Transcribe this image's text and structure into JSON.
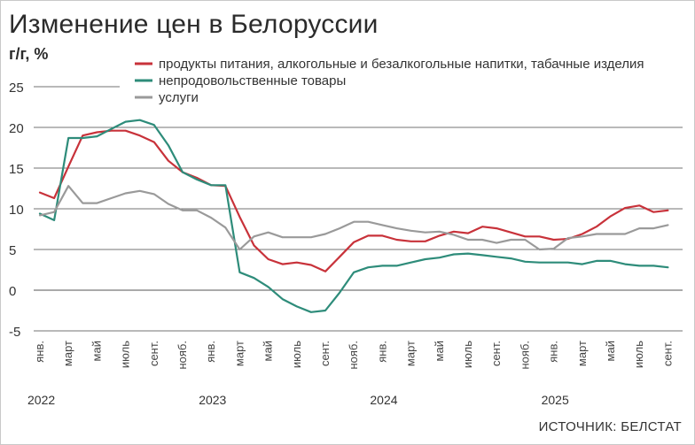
{
  "chart_data": {
    "type": "line",
    "title": "Изменение цен в Белоруссии",
    "ylabel": "г/г, %",
    "source": "ИСТОЧНИК: БЕЛСТАТ",
    "ylim": [
      -5,
      25
    ],
    "yticks": [
      25,
      20,
      15,
      10,
      5,
      0,
      -5
    ],
    "grid": true,
    "legend_position": "top-right",
    "month_tick_labels": [
      "янв.",
      "март",
      "май",
      "июль",
      "сент.",
      "нояб.",
      "янв.",
      "март",
      "май",
      "июль",
      "сент.",
      "нояб.",
      "янв.",
      "март",
      "май",
      "июль",
      "сент.",
      "нояб.",
      "янв.",
      "март",
      "май",
      "июль",
      "сент."
    ],
    "year_labels": [
      {
        "label": "2022",
        "month_index": 0
      },
      {
        "label": "2023",
        "month_index": 12
      },
      {
        "label": "2024",
        "month_index": 24
      },
      {
        "label": "2025",
        "month_index": 36
      }
    ],
    "x": [
      "2022-01",
      "2022-02",
      "2022-03",
      "2022-04",
      "2022-05",
      "2022-06",
      "2022-07",
      "2022-08",
      "2022-09",
      "2022-10",
      "2022-11",
      "2022-12",
      "2023-01",
      "2023-02",
      "2023-03",
      "2023-04",
      "2023-05",
      "2023-06",
      "2023-07",
      "2023-08",
      "2023-09",
      "2023-10",
      "2023-11",
      "2023-12",
      "2024-01",
      "2024-02",
      "2024-03",
      "2024-04",
      "2024-05",
      "2024-06",
      "2024-07",
      "2024-08",
      "2024-09",
      "2024-10",
      "2024-11",
      "2024-12",
      "2025-01",
      "2025-02",
      "2025-03",
      "2025-04",
      "2025-05",
      "2025-06",
      "2025-07",
      "2025-08",
      "2025-09"
    ],
    "series": [
      {
        "name": "продукты питания, алкогольные и безалкогольные напитки, табачные изделия",
        "color": "#c8323a",
        "values": [
          12.0,
          11.3,
          15.2,
          19.0,
          19.4,
          19.6,
          19.6,
          19.0,
          18.2,
          15.9,
          14.5,
          13.8,
          12.9,
          12.8,
          9.0,
          5.5,
          3.8,
          3.2,
          3.4,
          3.1,
          2.3,
          4.1,
          5.9,
          6.7,
          6.7,
          6.2,
          6.0,
          6.0,
          6.7,
          7.2,
          7.0,
          7.8,
          7.6,
          7.1,
          6.6,
          6.6,
          6.2,
          6.3,
          6.9,
          7.8,
          9.1,
          10.1,
          10.4,
          9.6,
          9.8
        ]
      },
      {
        "name": "непродовольственные товары",
        "color": "#2e8c7a",
        "values": [
          9.4,
          8.6,
          18.7,
          18.7,
          18.9,
          19.8,
          20.7,
          20.9,
          20.3,
          17.8,
          14.5,
          13.6,
          12.9,
          12.9,
          2.2,
          1.5,
          0.4,
          -1.1,
          -2.0,
          -2.7,
          -2.5,
          -0.3,
          2.2,
          2.8,
          3.0,
          3.0,
          3.4,
          3.8,
          4.0,
          4.4,
          4.5,
          4.3,
          4.1,
          3.9,
          3.5,
          3.4,
          3.4,
          3.4,
          3.2,
          3.6,
          3.6,
          3.2,
          3.0,
          3.0,
          2.8
        ]
      },
      {
        "name": "услуги",
        "color": "#9a9a9a",
        "values": [
          9.2,
          9.6,
          12.8,
          10.7,
          10.7,
          11.3,
          11.9,
          12.2,
          11.8,
          10.6,
          9.8,
          9.8,
          8.9,
          7.7,
          5.0,
          6.6,
          7.1,
          6.5,
          6.5,
          6.5,
          6.9,
          7.6,
          8.4,
          8.4,
          8.0,
          7.6,
          7.3,
          7.1,
          7.2,
          6.8,
          6.2,
          6.2,
          5.8,
          6.2,
          6.2,
          5.0,
          5.1,
          6.4,
          6.6,
          6.9,
          6.9,
          6.9,
          7.6,
          7.6,
          8.0
        ]
      }
    ]
  }
}
